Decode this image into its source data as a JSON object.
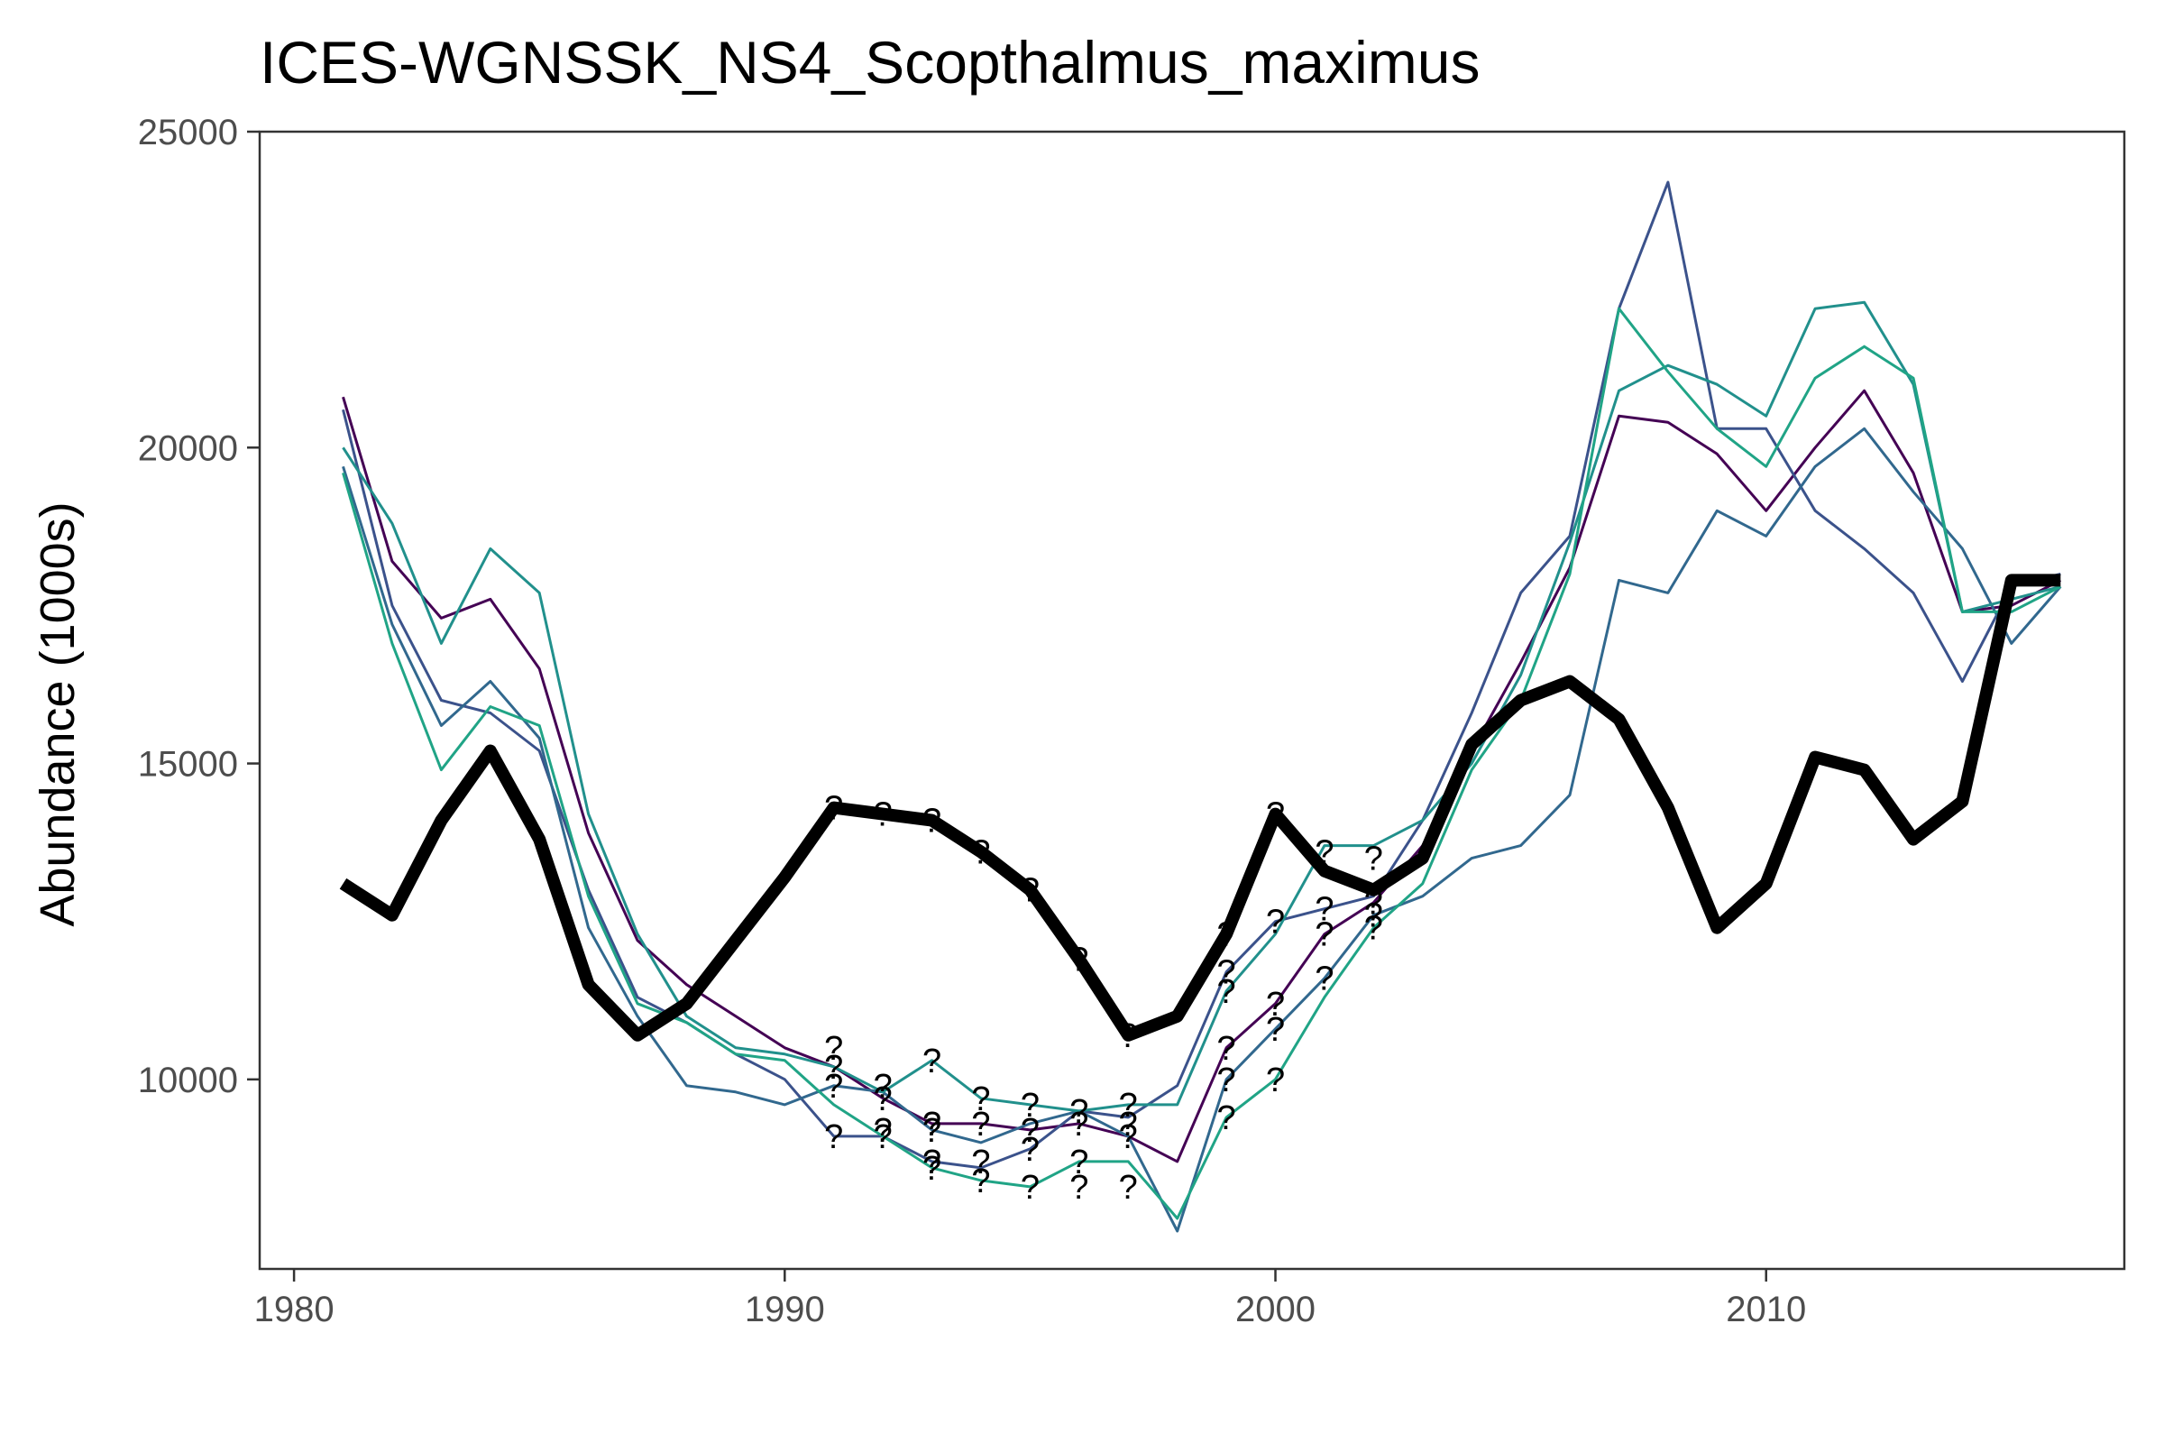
{
  "chart_data": {
    "type": "line",
    "title": "ICES-WGNSSK_NS4_Scopthalmus_maximus",
    "xlabel": "",
    "ylabel": "Abundance (1000s)",
    "xlim": [
      1979.3,
      2017.3
    ],
    "ylim": [
      7000,
      25000
    ],
    "x_ticks": [
      1980,
      1990,
      2000,
      2010
    ],
    "y_ticks": [
      10000,
      15000,
      20000,
      25000
    ],
    "grid": false,
    "legend": "none",
    "x": [
      1981,
      1982,
      1983,
      1984,
      1985,
      1986,
      1987,
      1988,
      1989,
      1990,
      1991,
      1992,
      1993,
      1994,
      1995,
      1996,
      1997,
      1998,
      1999,
      2000,
      2001,
      2002,
      2003,
      2004,
      2005,
      2006,
      2007,
      2008,
      2009,
      2010,
      2011,
      2012,
      2013,
      2014,
      2015,
      2016
    ],
    "series": [
      {
        "color": "#440154",
        "width": 3,
        "values": [
          20800,
          18200,
          17300,
          17600,
          16500,
          13900,
          12200,
          11500,
          11000,
          10500,
          10200,
          9700,
          9300,
          9300,
          9200,
          9300,
          9100,
          8700,
          10500,
          11200,
          12300,
          12800,
          13700,
          15200,
          16600,
          18100,
          20500,
          20400,
          19900,
          19000,
          20000,
          20900,
          19600,
          17400,
          17500,
          17900
        ]
      },
      {
        "color": "#3b528b",
        "width": 3,
        "values": [
          20600,
          17500,
          16000,
          15800,
          15200,
          13000,
          11300,
          10900,
          10400,
          10000,
          9100,
          9100,
          8700,
          8600,
          8900,
          9500,
          9400,
          9900,
          11700,
          12500,
          12700,
          12900,
          14100,
          15800,
          17700,
          18600,
          22200,
          24200,
          20300,
          20300,
          19000,
          18400,
          17700,
          16300,
          17800,
          18000
        ]
      },
      {
        "color": "#31688e",
        "width": 3,
        "values": [
          19700,
          17200,
          15600,
          16300,
          15400,
          12400,
          11000,
          9900,
          9800,
          9600,
          9900,
          9800,
          9200,
          9000,
          9300,
          9500,
          9100,
          7600,
          10000,
          10800,
          11600,
          12600,
          12900,
          13500,
          13700,
          14500,
          17900,
          17700,
          19000,
          18600,
          19700,
          20300,
          19300,
          18400,
          16900,
          17800
        ]
      },
      {
        "color": "#21908c",
        "width": 3,
        "values": [
          20000,
          18800,
          16900,
          18400,
          17700,
          14200,
          12300,
          11000,
          10500,
          10400,
          10200,
          9800,
          10300,
          9700,
          9600,
          9500,
          9600,
          9600,
          11400,
          12300,
          13700,
          13700,
          14100,
          15000,
          16400,
          18500,
          20900,
          21300,
          21000,
          20500,
          22200,
          22300,
          21000,
          17400,
          17600,
          17800
        ]
      },
      {
        "color": "#20a486",
        "width": 3,
        "values": [
          19600,
          16900,
          14900,
          15900,
          15600,
          12900,
          11200,
          10900,
          10400,
          10300,
          9600,
          9100,
          8600,
          8400,
          8300,
          8700,
          8700,
          7800,
          9400,
          10000,
          11300,
          12400,
          13100,
          14900,
          16000,
          18000,
          22200,
          21200,
          20300,
          19700,
          21100,
          21600,
          21100,
          17400,
          17400,
          17800
        ]
      },
      {
        "color": "#000000",
        "width": 14,
        "values": [
          13100,
          12600,
          14100,
          15200,
          13800,
          11500,
          10700,
          11200,
          12200,
          13200,
          14300,
          14200,
          14100,
          13600,
          13000,
          11900,
          10700,
          11000,
          12300,
          14200,
          13300,
          13000,
          13500,
          15300,
          16000,
          16300,
          15700,
          14300,
          12400,
          13100,
          15100,
          14900,
          13800,
          14400,
          17900,
          17900
        ]
      }
    ],
    "annotations": [
      {
        "text": "?",
        "x": 1991,
        "y": 14300
      },
      {
        "text": "?",
        "x": 1992,
        "y": 14200
      },
      {
        "text": "?",
        "x": 1993,
        "y": 14100
      },
      {
        "text": "?",
        "x": 1994,
        "y": 13600
      },
      {
        "text": "?",
        "x": 1995,
        "y": 13000
      },
      {
        "text": "?",
        "x": 1996,
        "y": 11900
      },
      {
        "text": "?",
        "x": 1997,
        "y": 10700
      },
      {
        "text": "?",
        "x": 1999,
        "y": 12300
      },
      {
        "text": "?",
        "x": 2000,
        "y": 14200
      },
      {
        "text": "?",
        "x": 2001,
        "y": 13600
      },
      {
        "text": "?",
        "x": 2002,
        "y": 13500
      },
      {
        "text": "?",
        "x": 1991,
        "y": 10500
      },
      {
        "text": "?",
        "x": 1991,
        "y": 10200
      },
      {
        "text": "?",
        "x": 1991,
        "y": 9900
      },
      {
        "text": "?",
        "x": 1991,
        "y": 9100
      },
      {
        "text": "?",
        "x": 1992,
        "y": 9900
      },
      {
        "text": "?",
        "x": 1992,
        "y": 9700
      },
      {
        "text": "?",
        "x": 1992,
        "y": 9200
      },
      {
        "text": "?",
        "x": 1992,
        "y": 9100
      },
      {
        "text": "?",
        "x": 1993,
        "y": 10300
      },
      {
        "text": "?",
        "x": 1993,
        "y": 9300
      },
      {
        "text": "?",
        "x": 1993,
        "y": 9200
      },
      {
        "text": "?",
        "x": 1993,
        "y": 8700
      },
      {
        "text": "?",
        "x": 1993,
        "y": 8600
      },
      {
        "text": "?",
        "x": 1994,
        "y": 9700
      },
      {
        "text": "?",
        "x": 1994,
        "y": 9300
      },
      {
        "text": "?",
        "x": 1994,
        "y": 8700
      },
      {
        "text": "?",
        "x": 1994,
        "y": 8400
      },
      {
        "text": "?",
        "x": 1995,
        "y": 9600
      },
      {
        "text": "?",
        "x": 1995,
        "y": 9200
      },
      {
        "text": "?",
        "x": 1995,
        "y": 8900
      },
      {
        "text": "?",
        "x": 1995,
        "y": 8300
      },
      {
        "text": "?",
        "x": 1996,
        "y": 9500
      },
      {
        "text": "?",
        "x": 1996,
        "y": 9300
      },
      {
        "text": "?",
        "x": 1996,
        "y": 8700
      },
      {
        "text": "?",
        "x": 1996,
        "y": 8300
      },
      {
        "text": "?",
        "x": 1997,
        "y": 9600
      },
      {
        "text": "?",
        "x": 1997,
        "y": 9300
      },
      {
        "text": "?",
        "x": 1997,
        "y": 9100
      },
      {
        "text": "?",
        "x": 1997,
        "y": 8300
      },
      {
        "text": "?",
        "x": 1999,
        "y": 11700
      },
      {
        "text": "?",
        "x": 1999,
        "y": 11400
      },
      {
        "text": "?",
        "x": 1999,
        "y": 10500
      },
      {
        "text": "?",
        "x": 1999,
        "y": 10000
      },
      {
        "text": "?",
        "x": 1999,
        "y": 9400
      },
      {
        "text": "?",
        "x": 2000,
        "y": 12500
      },
      {
        "text": "?",
        "x": 2000,
        "y": 11200
      },
      {
        "text": "?",
        "x": 2000,
        "y": 10800
      },
      {
        "text": "?",
        "x": 2000,
        "y": 10000
      },
      {
        "text": "?",
        "x": 2001,
        "y": 12700
      },
      {
        "text": "?",
        "x": 2001,
        "y": 12300
      },
      {
        "text": "?",
        "x": 2001,
        "y": 11600
      },
      {
        "text": "?",
        "x": 2002,
        "y": 12800
      },
      {
        "text": "?",
        "x": 2002,
        "y": 12600
      },
      {
        "text": "?",
        "x": 2002,
        "y": 12400
      }
    ]
  }
}
